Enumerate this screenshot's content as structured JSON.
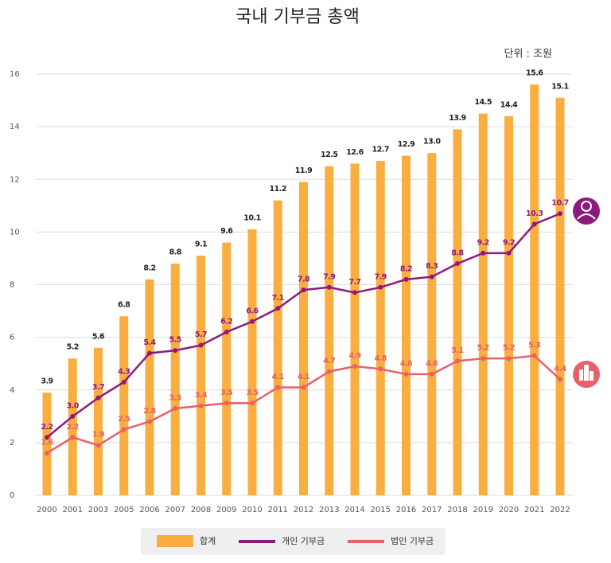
{
  "chart_data": {
    "type": "bar-line",
    "title": "국내 기부금 총액",
    "unit": "단위 : 조원",
    "categories": [
      "2000",
      "2001",
      "2003",
      "2005",
      "2006",
      "2007",
      "2008",
      "2009",
      "2010",
      "2011",
      "2012",
      "2013",
      "2014",
      "2015",
      "2016",
      "2017",
      "2018",
      "2019",
      "2020",
      "2021",
      "2022"
    ],
    "series": [
      {
        "name": "합계",
        "type": "bar",
        "color": "#f9ae3f",
        "values": [
          3.9,
          5.2,
          5.6,
          6.8,
          8.2,
          8.8,
          9.1,
          9.6,
          10.1,
          11.2,
          11.9,
          12.5,
          12.6,
          12.7,
          12.9,
          13.0,
          13.9,
          14.5,
          14.4,
          15.6,
          15.1
        ],
        "value_labels": [
          "3.9",
          "5.2",
          "5.6",
          "6.8",
          "8.2",
          "8.8",
          "9.1",
          "9.6",
          "10.1",
          "11.2",
          "11.9",
          "12.5",
          "12.6",
          "12.7",
          "12.9",
          "13.0",
          "13.9",
          "14.5",
          "14.4",
          "15.6",
          "15.1"
        ]
      },
      {
        "name": "개인 기부금",
        "type": "line",
        "color": "#8e1a7e",
        "values": [
          2.2,
          3.0,
          3.7,
          4.3,
          5.4,
          5.5,
          5.7,
          6.2,
          6.6,
          7.1,
          7.8,
          7.9,
          7.7,
          7.9,
          8.2,
          8.3,
          8.8,
          9.2,
          9.2,
          10.3,
          10.7
        ],
        "value_labels": [
          "2.2",
          "3.0",
          "3.7",
          "4.3",
          "5.4",
          "5.5",
          "5.7",
          "6.2",
          "6.6",
          "7.1",
          "7.8",
          "7.9",
          "7.7",
          "7.9",
          "8.2",
          "8.3",
          "8.8",
          "9.2",
          "9.2",
          "10.3",
          "10.7"
        ]
      },
      {
        "name": "법인 기부금",
        "type": "line",
        "color": "#e8606a",
        "values": [
          1.6,
          2.2,
          1.9,
          2.5,
          2.8,
          3.3,
          3.4,
          3.5,
          3.5,
          4.1,
          4.1,
          4.7,
          4.9,
          4.8,
          4.6,
          4.6,
          5.1,
          5.2,
          5.2,
          5.3,
          4.4
        ],
        "value_labels": [
          "1.6",
          "2.2",
          "1.9",
          "2.5",
          "2.8",
          "3.3",
          "3.4",
          "3.5",
          "3.5",
          "4.1",
          "4.1",
          "4.7",
          "4.9",
          "4.8",
          "4.6",
          "4.6",
          "5.1",
          "5.2",
          "5.2",
          "5.3",
          "4.4"
        ]
      }
    ],
    "ylim": [
      0,
      16
    ],
    "yticks": [
      0,
      2,
      4,
      6,
      8,
      10,
      12,
      14,
      16
    ],
    "grid": true
  }
}
